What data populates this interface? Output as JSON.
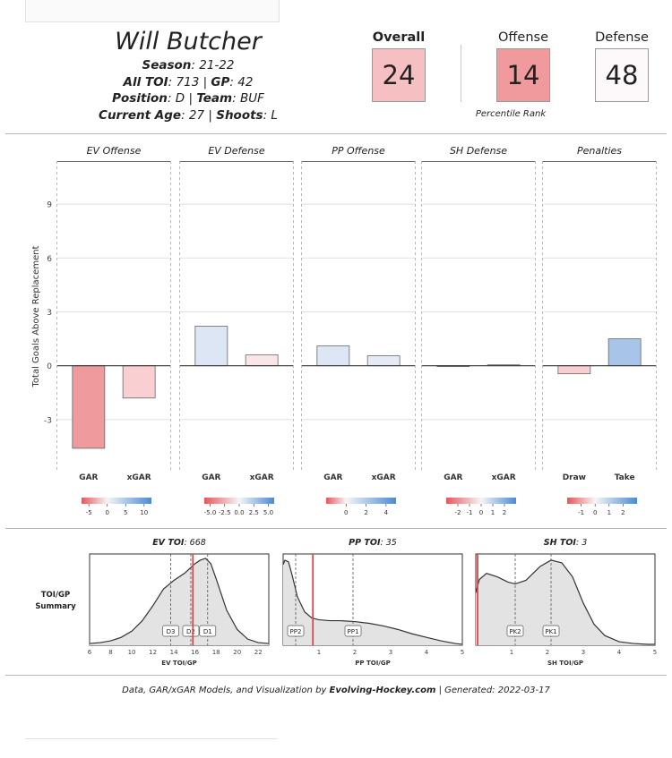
{
  "player": {
    "name": "Will Butcher",
    "season_label": "Season",
    "season": ": 21-22",
    "toi_label": "All TOI",
    "toi": ": 713 | ",
    "gp_label": "GP",
    "gp": ": 42",
    "position_label": "Position",
    "position": ": D | ",
    "team_label": "Team",
    "team": ": BUF",
    "age_label": "Current  Age",
    "age": ": 27 | ",
    "shoots_label": "Shoots",
    "shoots": ": L"
  },
  "scores": {
    "overall_label": "Overall",
    "overall": "24",
    "offense_label": "Offense",
    "offense": "14",
    "defense_label": "Defense",
    "defense": "48",
    "percentile_label": "Percentile Rank",
    "colors": {
      "overall": "#f6c0c3",
      "offense": "#f19a9e",
      "defense": "#fdf9fa"
    }
  },
  "footer": {
    "prefix": "Data, GAR/xGAR Models, and Visualization by ",
    "site": "Evolving-Hockey.com",
    "suffix": "  |  Generated:  2022-03-17"
  },
  "chart_data": [
    {
      "type": "bar",
      "ylabel": "Total Goals Above Replacement",
      "ylim": [
        -5.9,
        11.4
      ],
      "yticks": [
        -3,
        0,
        3,
        6,
        9
      ],
      "grid": true,
      "panels": [
        {
          "title": "EV Offense",
          "categories": [
            "GAR",
            "xGAR"
          ],
          "values": [
            -4.6,
            -1.8
          ],
          "colors": [
            "#ef9a9c",
            "#f9cfd1"
          ],
          "legend_ticks": [
            "-5",
            "0",
            "5",
            "10"
          ],
          "legend_range": [
            -7,
            12
          ]
        },
        {
          "title": "EV Defense",
          "categories": [
            "GAR",
            "xGAR"
          ],
          "values": [
            2.2,
            0.6
          ],
          "colors": [
            "#dde6f5",
            "#fbe6e7"
          ],
          "legend_ticks": [
            "-5.0",
            "-2.5",
            "0.0",
            "2.5",
            "5.0"
          ],
          "legend_range": [
            -6,
            6
          ]
        },
        {
          "title": "PP Offense",
          "categories": [
            "GAR",
            "xGAR"
          ],
          "values": [
            1.1,
            0.55
          ],
          "colors": [
            "#dde6f5",
            "#e4ebf7"
          ],
          "legend_ticks": [
            "0",
            "2",
            "4"
          ],
          "legend_range": [
            -2,
            5
          ]
        },
        {
          "title": "SH Defense",
          "categories": [
            "GAR",
            "xGAR"
          ],
          "values": [
            -0.03,
            0.05
          ],
          "colors": [
            "#f4eeee",
            "#eef2f8"
          ],
          "legend_ticks": [
            "-2",
            "-1",
            "0",
            "1",
            "2"
          ],
          "legend_range": [
            -3,
            3
          ]
        },
        {
          "title": "Penalties",
          "categories": [
            "Draw",
            "Take"
          ],
          "values": [
            -0.45,
            1.5
          ],
          "colors": [
            "#f8d0d2",
            "#a8c4e8"
          ],
          "legend_ticks": [
            "-1",
            "0",
            "1",
            "2"
          ],
          "legend_range": [
            -2,
            3
          ]
        }
      ]
    },
    {
      "type": "area",
      "row_label": [
        "TOI/GP",
        "Summary"
      ],
      "panels": [
        {
          "title_label": "EV TOI",
          "title_value": ": 668",
          "xlabel": "EV TOI/GP",
          "xlim": [
            6,
            23
          ],
          "xticks": [
            "6",
            "8",
            "10",
            "12",
            "14",
            "16",
            "18",
            "20",
            "22"
          ],
          "xtick_values": [
            6,
            8,
            10,
            12,
            14,
            16,
            18,
            20,
            22
          ],
          "density_x": [
            6,
            7,
            8,
            9,
            10,
            11,
            12,
            13,
            14,
            15,
            16,
            16.5,
            17,
            17.5,
            18,
            19,
            20,
            21,
            22,
            23
          ],
          "density_y": [
            0.02,
            0.03,
            0.05,
            0.09,
            0.16,
            0.28,
            0.45,
            0.64,
            0.74,
            0.82,
            0.93,
            0.97,
            0.99,
            0.93,
            0.76,
            0.4,
            0.18,
            0.07,
            0.03,
            0.02
          ],
          "player_value": 15.8,
          "refs": [
            {
              "label": "D3",
              "x": 13.7
            },
            {
              "label": "D2",
              "x": 15.6
            },
            {
              "label": "D1",
              "x": 17.2
            }
          ]
        },
        {
          "title_label": "PP TOI",
          "title_value": ": 35",
          "xlabel": "PP TOI/GP",
          "xlim": [
            0,
            5
          ],
          "xticks": [
            "1",
            "2",
            "3",
            "4",
            "5"
          ],
          "xtick_values": [
            1,
            2,
            3,
            4,
            5
          ],
          "density_x": [
            0,
            0.05,
            0.15,
            0.25,
            0.4,
            0.6,
            0.8,
            1,
            1.3,
            1.6,
            2,
            2.4,
            2.8,
            3.2,
            3.6,
            4,
            4.4,
            4.8,
            5
          ],
          "density_y": [
            0.92,
            0.97,
            0.95,
            0.8,
            0.55,
            0.38,
            0.31,
            0.29,
            0.28,
            0.28,
            0.27,
            0.25,
            0.22,
            0.18,
            0.13,
            0.09,
            0.05,
            0.02,
            0.01
          ],
          "player_value": 0.83,
          "refs": [
            {
              "label": "PP2",
              "x": 0.35
            },
            {
              "label": "PP1",
              "x": 1.95
            }
          ]
        },
        {
          "title_label": "SH TOI",
          "title_value": ": 3",
          "xlabel": "SH TOI/GP",
          "xlim": [
            0,
            5
          ],
          "xticks": [
            "1",
            "2",
            "3",
            "4",
            "5"
          ],
          "xtick_values": [
            1,
            2,
            3,
            4,
            5
          ],
          "density_x": [
            0,
            0.1,
            0.3,
            0.6,
            0.9,
            1.1,
            1.4,
            1.8,
            2.1,
            2.4,
            2.7,
            3,
            3.3,
            3.6,
            4,
            4.4,
            4.8,
            5
          ],
          "density_y": [
            0.6,
            0.75,
            0.82,
            0.78,
            0.72,
            0.7,
            0.74,
            0.9,
            0.97,
            0.94,
            0.78,
            0.48,
            0.24,
            0.11,
            0.04,
            0.02,
            0.01,
            0.01
          ],
          "player_value": 0.05,
          "refs": [
            {
              "label": "PK2",
              "x": 1.1
            },
            {
              "label": "PK1",
              "x": 2.1
            }
          ]
        }
      ]
    }
  ]
}
